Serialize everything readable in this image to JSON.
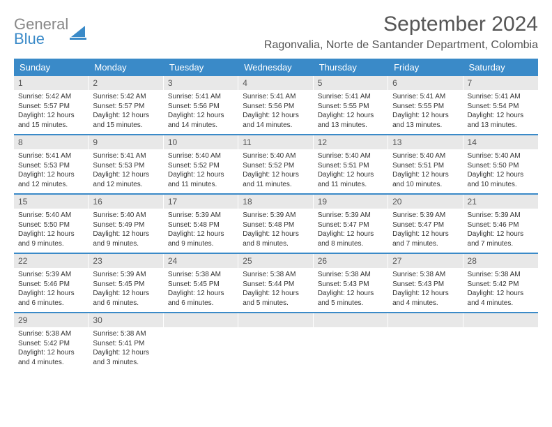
{
  "logo": {
    "line1": "General",
    "line2": "Blue"
  },
  "title": "September 2024",
  "location": "Ragonvalia, Norte de Santander Department, Colombia",
  "colors": {
    "header_bg": "#3a8ac8",
    "header_text": "#ffffff",
    "daynum_bg": "#e8e8e8",
    "border": "#3a8ac8",
    "body_text": "#333333"
  },
  "weekdays": [
    "Sunday",
    "Monday",
    "Tuesday",
    "Wednesday",
    "Thursday",
    "Friday",
    "Saturday"
  ],
  "weeks": [
    [
      {
        "n": "1",
        "sunrise": "5:42 AM",
        "sunset": "5:57 PM",
        "daylight": "12 hours and 15 minutes."
      },
      {
        "n": "2",
        "sunrise": "5:42 AM",
        "sunset": "5:57 PM",
        "daylight": "12 hours and 15 minutes."
      },
      {
        "n": "3",
        "sunrise": "5:41 AM",
        "sunset": "5:56 PM",
        "daylight": "12 hours and 14 minutes."
      },
      {
        "n": "4",
        "sunrise": "5:41 AM",
        "sunset": "5:56 PM",
        "daylight": "12 hours and 14 minutes."
      },
      {
        "n": "5",
        "sunrise": "5:41 AM",
        "sunset": "5:55 PM",
        "daylight": "12 hours and 13 minutes."
      },
      {
        "n": "6",
        "sunrise": "5:41 AM",
        "sunset": "5:55 PM",
        "daylight": "12 hours and 13 minutes."
      },
      {
        "n": "7",
        "sunrise": "5:41 AM",
        "sunset": "5:54 PM",
        "daylight": "12 hours and 13 minutes."
      }
    ],
    [
      {
        "n": "8",
        "sunrise": "5:41 AM",
        "sunset": "5:53 PM",
        "daylight": "12 hours and 12 minutes."
      },
      {
        "n": "9",
        "sunrise": "5:41 AM",
        "sunset": "5:53 PM",
        "daylight": "12 hours and 12 minutes."
      },
      {
        "n": "10",
        "sunrise": "5:40 AM",
        "sunset": "5:52 PM",
        "daylight": "12 hours and 11 minutes."
      },
      {
        "n": "11",
        "sunrise": "5:40 AM",
        "sunset": "5:52 PM",
        "daylight": "12 hours and 11 minutes."
      },
      {
        "n": "12",
        "sunrise": "5:40 AM",
        "sunset": "5:51 PM",
        "daylight": "12 hours and 11 minutes."
      },
      {
        "n": "13",
        "sunrise": "5:40 AM",
        "sunset": "5:51 PM",
        "daylight": "12 hours and 10 minutes."
      },
      {
        "n": "14",
        "sunrise": "5:40 AM",
        "sunset": "5:50 PM",
        "daylight": "12 hours and 10 minutes."
      }
    ],
    [
      {
        "n": "15",
        "sunrise": "5:40 AM",
        "sunset": "5:50 PM",
        "daylight": "12 hours and 9 minutes."
      },
      {
        "n": "16",
        "sunrise": "5:40 AM",
        "sunset": "5:49 PM",
        "daylight": "12 hours and 9 minutes."
      },
      {
        "n": "17",
        "sunrise": "5:39 AM",
        "sunset": "5:48 PM",
        "daylight": "12 hours and 9 minutes."
      },
      {
        "n": "18",
        "sunrise": "5:39 AM",
        "sunset": "5:48 PM",
        "daylight": "12 hours and 8 minutes."
      },
      {
        "n": "19",
        "sunrise": "5:39 AM",
        "sunset": "5:47 PM",
        "daylight": "12 hours and 8 minutes."
      },
      {
        "n": "20",
        "sunrise": "5:39 AM",
        "sunset": "5:47 PM",
        "daylight": "12 hours and 7 minutes."
      },
      {
        "n": "21",
        "sunrise": "5:39 AM",
        "sunset": "5:46 PM",
        "daylight": "12 hours and 7 minutes."
      }
    ],
    [
      {
        "n": "22",
        "sunrise": "5:39 AM",
        "sunset": "5:46 PM",
        "daylight": "12 hours and 6 minutes."
      },
      {
        "n": "23",
        "sunrise": "5:39 AM",
        "sunset": "5:45 PM",
        "daylight": "12 hours and 6 minutes."
      },
      {
        "n": "24",
        "sunrise": "5:38 AM",
        "sunset": "5:45 PM",
        "daylight": "12 hours and 6 minutes."
      },
      {
        "n": "25",
        "sunrise": "5:38 AM",
        "sunset": "5:44 PM",
        "daylight": "12 hours and 5 minutes."
      },
      {
        "n": "26",
        "sunrise": "5:38 AM",
        "sunset": "5:43 PM",
        "daylight": "12 hours and 5 minutes."
      },
      {
        "n": "27",
        "sunrise": "5:38 AM",
        "sunset": "5:43 PM",
        "daylight": "12 hours and 4 minutes."
      },
      {
        "n": "28",
        "sunrise": "5:38 AM",
        "sunset": "5:42 PM",
        "daylight": "12 hours and 4 minutes."
      }
    ],
    [
      {
        "n": "29",
        "sunrise": "5:38 AM",
        "sunset": "5:42 PM",
        "daylight": "12 hours and 4 minutes."
      },
      {
        "n": "30",
        "sunrise": "5:38 AM",
        "sunset": "5:41 PM",
        "daylight": "12 hours and 3 minutes."
      },
      {
        "empty": true
      },
      {
        "empty": true
      },
      {
        "empty": true
      },
      {
        "empty": true
      },
      {
        "empty": true
      }
    ]
  ],
  "labels": {
    "sunrise": "Sunrise:",
    "sunset": "Sunset:",
    "daylight": "Daylight:"
  }
}
